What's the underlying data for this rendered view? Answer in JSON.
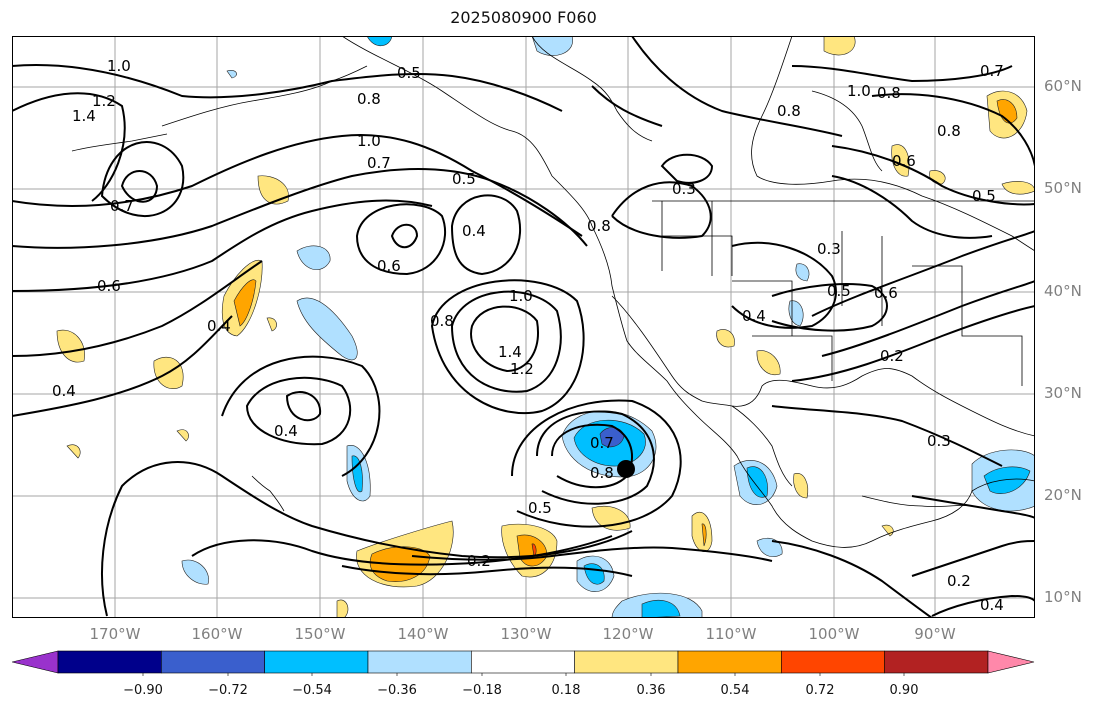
{
  "title": "2025080900 F060",
  "latitude_labels": [
    "60°N",
    "50°N",
    "40°N",
    "30°N",
    "20°N",
    "10°N"
  ],
  "longitude_labels": [
    "170°W",
    "160°W",
    "150°W",
    "140°W",
    "130°W",
    "120°W",
    "110°W",
    "100°W",
    "90°W"
  ],
  "colorbar": {
    "tick_labels": [
      "−0.90",
      "−0.72",
      "−0.54",
      "−0.36",
      "−0.18",
      "0.18",
      "0.36",
      "0.54",
      "0.72",
      "0.90"
    ],
    "colors": [
      "#9932cc",
      "#00008b",
      "#3a5fcd",
      "#00bfff",
      "#b0e0ff",
      "#ffffff",
      "#ffe680",
      "#ffa500",
      "#ff4500",
      "#b22222",
      "#ff88aa"
    ]
  },
  "contour_labels": [
    "1.0",
    "1.4",
    "1.2",
    "0.7",
    "0.5",
    "0.8",
    "1.0",
    "0.7",
    "0.5",
    "0.4",
    "0.6",
    "0.8",
    "0.6",
    "0.4",
    "0.4",
    "0.4",
    "0.8",
    "1.0",
    "1.4",
    "1.2",
    "0.7",
    "0.8",
    "0.5",
    "0.2",
    "0.3",
    "0.8",
    "0.3",
    "0.4",
    "0.5",
    "0.6",
    "0.2",
    "0.3",
    "1.0",
    "0.8",
    "0.7",
    "0.8",
    "0.6",
    "0.5",
    "0.2",
    "0.4"
  ],
  "map_extent": {
    "lon_min": "180°W",
    "lon_max": "80°W",
    "lat_min": "8°N",
    "lat_max": "65°N"
  },
  "marker": {
    "lon": -119.7,
    "lat": 22.7,
    "color": "#000000"
  }
}
